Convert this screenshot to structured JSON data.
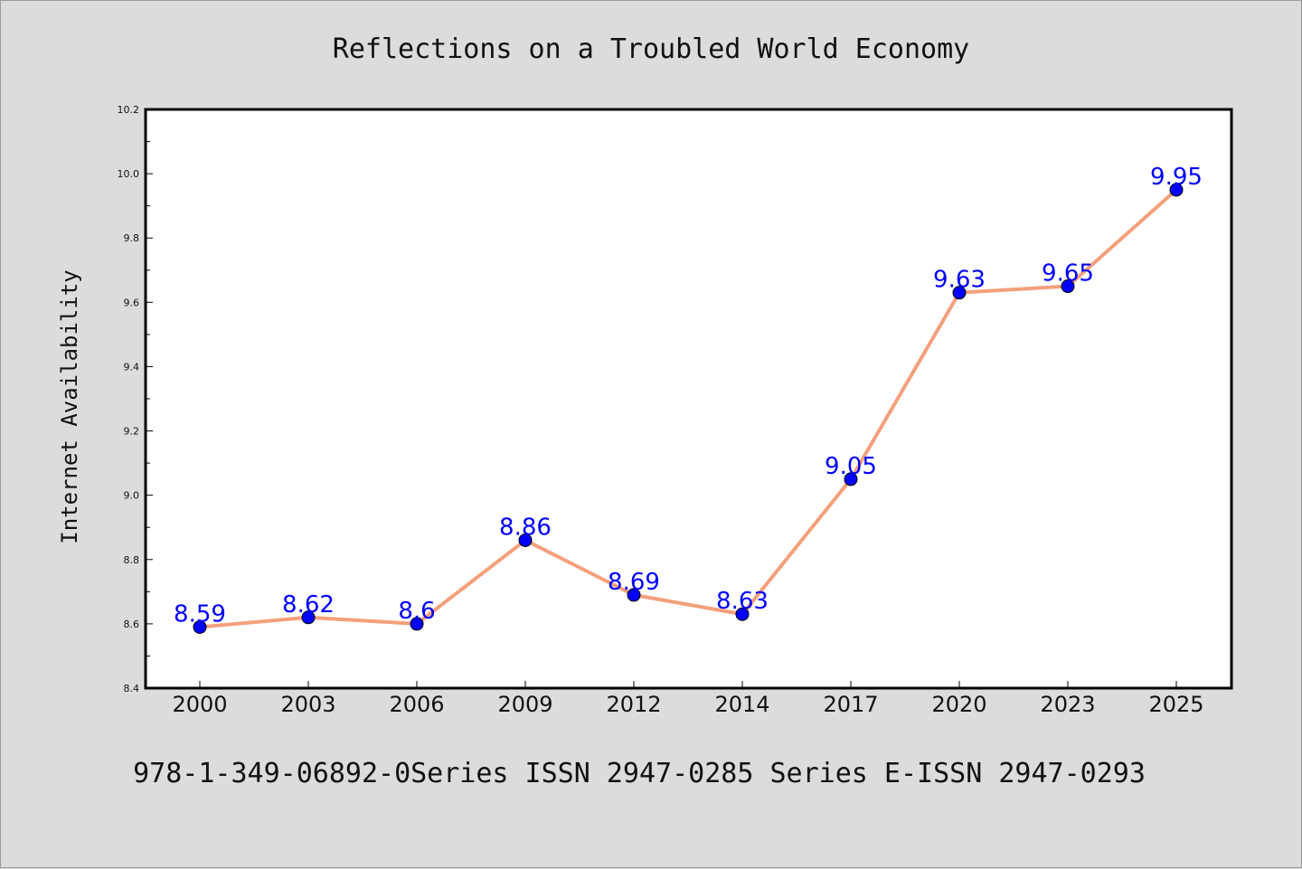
{
  "chart_data": {
    "type": "line",
    "title": "Reflections on a Troubled World Economy",
    "xlabel": "",
    "ylabel": "Internet Availability",
    "categories": [
      "2000",
      "2003",
      "2006",
      "2009",
      "2012",
      "2014",
      "2017",
      "2020",
      "2023",
      "2025"
    ],
    "series": [
      {
        "values": [
          8.59,
          8.62,
          8.6,
          8.86,
          8.69,
          8.63,
          9.05,
          9.63,
          9.65,
          9.95
        ],
        "data_labels": [
          "8.59",
          "8.62",
          "8.6",
          "8.86",
          "8.69",
          "8.63",
          "9.05",
          "9.63",
          "9.65",
          "9.95"
        ],
        "line_color": "#f4a07c",
        "marker_color": "#0000ff"
      }
    ],
    "ylim": [
      8.4,
      10.2
    ],
    "yticks": [
      "8.4",
      "8.6",
      "8.8",
      "9.0",
      "9.2",
      "9.4",
      "9.6",
      "9.8",
      "10.0",
      "10.2"
    ],
    "grid": false,
    "legend": "none"
  },
  "footer": {
    "text": "978-1-349-06892-0Series ISSN 2947-0285 Series E-ISSN 2947-0293"
  },
  "colors": {
    "background": "#dcdcdc",
    "plot_background": "#ffffff",
    "line": "#f4a07c",
    "marker": "#0000ff",
    "data_label": "#0000ff"
  }
}
